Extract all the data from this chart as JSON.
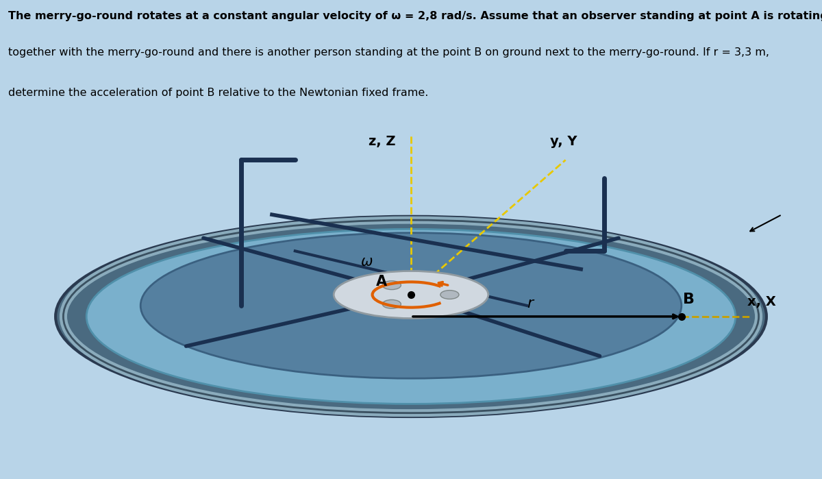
{
  "bg_color": "#b8d4e8",
  "title_lines": [
    "The merry-go-round rotates at a constant angular velocity of ω = 2,8 rad/s. Assume that an observer standing at point A is rotating",
    "together with the merry-go-round and there is another person standing at the point B on ground next to the merry-go-round. If r = 3,3 m,",
    "determine the acceleration of point B relative to the Newtonian fixed frame."
  ],
  "title_fontsize": 11.5,
  "title_color": "#000000",
  "image_bg": "#7a9db8",
  "label_zZ": "z, Z",
  "label_yY": "y, Y",
  "label_xX": "x, X",
  "label_r": "r",
  "label_A": "A",
  "label_B": "B",
  "label_omega": "ω",
  "axis_label_fontsize": 14,
  "point_label_fontsize": 14
}
